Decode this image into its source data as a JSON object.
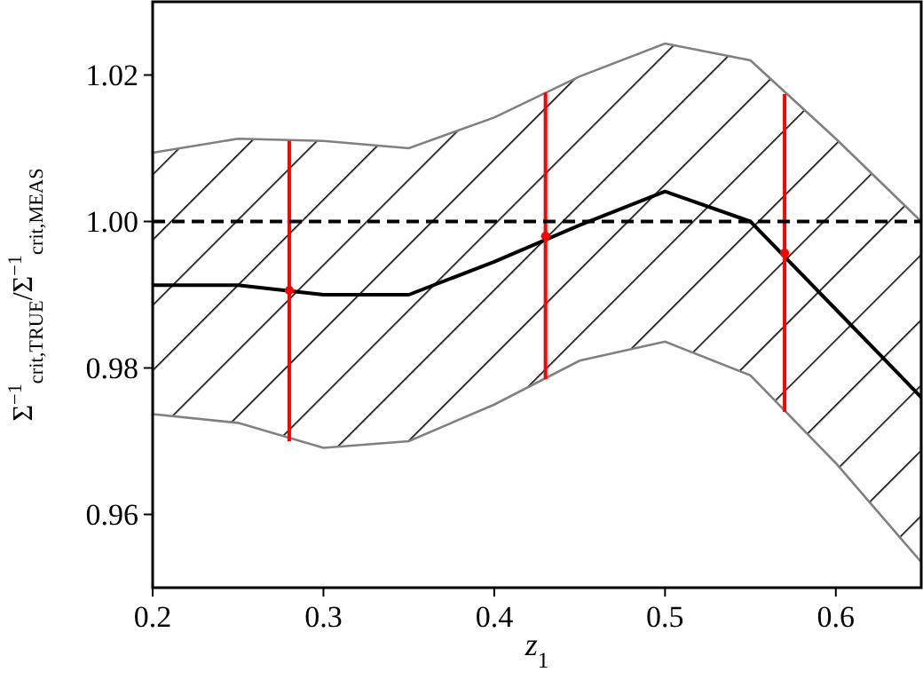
{
  "chart_data": {
    "type": "line",
    "xlabel": "z$_{1}$",
    "ylabel": "Σ$^{−1}$$_{crit,TRUE}$/Σ$^{−1}$$_{crit,MEAS}$",
    "xlim": [
      0.2,
      0.65
    ],
    "ylim": [
      0.95,
      1.03
    ],
    "xticks": [
      0.2,
      0.3,
      0.4,
      0.5,
      0.6
    ],
    "yticks": [
      0.96,
      0.98,
      {
        "value": 1.0,
        "label": "1.00"
      },
      1.02
    ],
    "grid": false,
    "series": [
      {
        "color": "#000000",
        "marker": "none",
        "x": [
          0.2,
          0.25,
          0.3,
          0.35,
          0.4,
          0.45,
          0.5,
          0.55,
          0.6,
          0.65
        ],
        "values": [
          0.9913,
          0.9913,
          0.99,
          0.99,
          0.9945,
          0.9995,
          1.0041,
          1.0,
          0.988,
          0.976
        ],
        "lower": [
          0.9737,
          0.9725,
          0.9691,
          0.97,
          0.975,
          0.981,
          0.9836,
          0.979,
          0.967,
          0.9535
        ],
        "upper": [
          1.0094,
          1.0113,
          1.011,
          1.01,
          1.0142,
          1.0198,
          1.0243,
          1.022,
          1.0113,
          1.0
        ]
      },
      {
        "type": "scatter",
        "color": "#ff0000",
        "marker": "circle",
        "x": [
          0.28,
          0.43,
          0.57
        ],
        "values": [
          0.9906,
          0.998,
          0.9957
        ],
        "errors": [
          [
            0.97,
            1.011
          ],
          [
            0.9785,
            1.0176
          ],
          [
            0.974,
            1.0174
          ]
        ]
      }
    ],
    "ref_lines": [
      {
        "axis": "y",
        "value": 1.0,
        "color": "#000000",
        "line_style": "dashed"
      }
    ]
  }
}
